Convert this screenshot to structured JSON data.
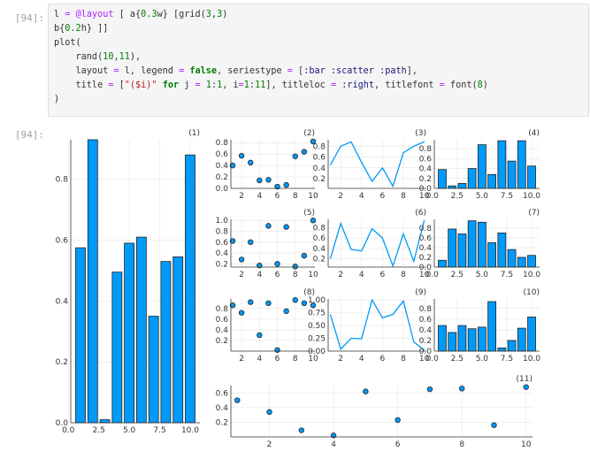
{
  "cell": {
    "input_prompt": "[94]:",
    "output_prompt": "[94]:",
    "code_lines": [
      "l = @layout [ a{0.3w} [grid(3,3)",
      "b{0.2h} ]]",
      "plot(",
      "    rand(10,11),",
      "    layout = l, legend = false, seriestype = [:bar :scatter :path],",
      "    title = [\"($i)\" for j = 1:1, i=1:11], titleloc = :right, titlefont = font(8)",
      ")"
    ]
  },
  "colors": {
    "series": "#009AF9",
    "axis": "#333333",
    "grid": "#e6e6e6",
    "marker_edge": "#222222"
  },
  "chart_data": [
    {
      "type": "bar",
      "title": "(1)",
      "x": [
        1,
        2,
        3,
        4,
        5,
        6,
        7,
        8,
        9,
        10
      ],
      "values": [
        0.575,
        0.93,
        0.01,
        0.495,
        0.59,
        0.61,
        0.35,
        0.53,
        0.545,
        0.88
      ],
      "xlim": [
        0.2,
        10.8
      ],
      "ylim": [
        0,
        0.93
      ],
      "xticks": [
        0,
        2.5,
        5,
        7.5,
        10
      ],
      "xtick_labels": [
        "0.0",
        "2.5",
        "5.0",
        "7.5",
        "10.0"
      ],
      "yticks": [
        0,
        0.2,
        0.4,
        0.6,
        0.8
      ],
      "ytick_labels": [
        "0.0",
        "0.2",
        "0.4",
        "0.6",
        "0.8"
      ]
    },
    {
      "type": "scatter",
      "title": "(2)",
      "x": [
        1,
        2,
        3,
        4,
        5,
        6,
        7,
        8,
        9,
        10
      ],
      "values": [
        0.4,
        0.57,
        0.45,
        0.14,
        0.15,
        0.03,
        0.06,
        0.56,
        0.64,
        0.82
      ],
      "xlim": [
        0.8,
        10.2
      ],
      "ylim": [
        0,
        0.85
      ],
      "xticks": [
        2,
        4,
        6,
        8,
        10
      ],
      "xtick_labels": [
        "2",
        "4",
        "6",
        "8",
        "10"
      ],
      "yticks": [
        0,
        0.2,
        0.4,
        0.6,
        0.8
      ],
      "ytick_labels": [
        "0.0",
        "0.2",
        "0.4",
        "0.6",
        "0.8"
      ]
    },
    {
      "type": "line",
      "title": "(3)",
      "x": [
        1,
        2,
        3,
        4,
        5,
        6,
        7,
        8,
        9,
        10
      ],
      "values": [
        0.45,
        0.8,
        0.88,
        0.5,
        0.15,
        0.4,
        0.06,
        0.68,
        0.8,
        0.88
      ],
      "xlim": [
        0.8,
        10.2
      ],
      "ylim": [
        0.02,
        0.92
      ],
      "xticks": [
        2,
        4,
        6,
        8,
        10
      ],
      "xtick_labels": [
        "2",
        "4",
        "6",
        "8",
        "10"
      ],
      "yticks": [
        0.2,
        0.4,
        0.6,
        0.8
      ],
      "ytick_labels": [
        "0.2",
        "0.4",
        "0.6",
        "0.8"
      ]
    },
    {
      "type": "bar",
      "title": "(4)",
      "x": [
        1,
        2,
        3,
        4,
        5,
        6,
        7,
        8,
        9,
        10
      ],
      "values": [
        0.38,
        0.05,
        0.1,
        0.4,
        0.88,
        0.28,
        0.96,
        0.55,
        0.96,
        0.45
      ],
      "xlim": [
        0.2,
        10.8
      ],
      "ylim": [
        0,
        0.98
      ],
      "xticks": [
        0,
        2.5,
        5,
        7.5,
        10
      ],
      "xtick_labels": [
        "0.0",
        "2.5",
        "5.0",
        "7.5",
        "10.0"
      ],
      "yticks": [
        0,
        0.2,
        0.4,
        0.6,
        0.8
      ],
      "ytick_labels": [
        "0.0",
        "0.2",
        "0.4",
        "0.6",
        "0.8"
      ]
    },
    {
      "type": "scatter",
      "title": "(5)",
      "x": [
        1,
        2,
        3,
        4,
        5,
        6,
        7,
        8,
        9,
        10
      ],
      "values": [
        0.62,
        0.28,
        0.6,
        0.17,
        0.9,
        0.2,
        0.88,
        0.15,
        0.35,
        1.0
      ],
      "xlim": [
        0.8,
        10.2
      ],
      "ylim": [
        0.14,
        1.02
      ],
      "xticks": [
        2,
        4,
        6,
        8,
        10
      ],
      "xtick_labels": [
        "2",
        "4",
        "6",
        "8",
        "10"
      ],
      "yticks": [
        0.2,
        0.4,
        0.6,
        0.8,
        1.0
      ],
      "ytick_labels": [
        "0.2",
        "0.4",
        "0.6",
        "0.8",
        "1.0"
      ]
    },
    {
      "type": "line",
      "title": "(6)",
      "x": [
        1,
        2,
        3,
        4,
        5,
        6,
        7,
        8,
        9,
        10
      ],
      "values": [
        0.2,
        0.88,
        0.38,
        0.35,
        0.78,
        0.6,
        0.06,
        0.68,
        0.15,
        0.94
      ],
      "xlim": [
        0.8,
        10.2
      ],
      "ylim": [
        0.04,
        0.96
      ],
      "xticks": [
        2,
        4,
        6,
        8,
        10
      ],
      "xtick_labels": [
        "2",
        "4",
        "6",
        "8",
        "10"
      ],
      "yticks": [
        0.2,
        0.4,
        0.6,
        0.8
      ],
      "ytick_labels": [
        "0.2",
        "0.4",
        "0.6",
        "0.8"
      ]
    },
    {
      "type": "bar",
      "title": "(7)",
      "x": [
        1,
        2,
        3,
        4,
        5,
        6,
        7,
        8,
        9,
        10
      ],
      "values": [
        0.14,
        0.78,
        0.68,
        0.95,
        0.92,
        0.5,
        0.7,
        0.36,
        0.2,
        0.24
      ],
      "xlim": [
        0.2,
        10.8
      ],
      "ylim": [
        0,
        0.98
      ],
      "xticks": [
        0,
        2.5,
        5,
        7.5,
        10
      ],
      "xtick_labels": [
        "0.0",
        "2.5",
        "5.0",
        "7.5",
        "10.0"
      ],
      "yticks": [
        0,
        0.2,
        0.4,
        0.6,
        0.8
      ],
      "ytick_labels": [
        "0.0",
        "0.2",
        "0.4",
        "0.6",
        "0.8"
      ]
    },
    {
      "type": "scatter",
      "title": "(8)",
      "x": [
        1,
        2,
        3,
        4,
        5,
        6,
        7,
        8,
        9,
        10
      ],
      "values": [
        0.86,
        0.72,
        0.92,
        0.3,
        0.9,
        0.02,
        0.75,
        0.96,
        0.9,
        0.86
      ],
      "xlim": [
        0.8,
        10.2
      ],
      "ylim": [
        0,
        0.98
      ],
      "xticks": [
        2,
        4,
        6,
        8,
        10
      ],
      "xtick_labels": [
        "2",
        "4",
        "6",
        "8",
        "10"
      ],
      "yticks": [
        0.2,
        0.4,
        0.6,
        0.8
      ],
      "ytick_labels": [
        "0.2",
        "0.4",
        "0.6",
        "0.8"
      ]
    },
    {
      "type": "line",
      "title": "(9)",
      "x": [
        1,
        2,
        3,
        4,
        5,
        6,
        7,
        8,
        9,
        10
      ],
      "values": [
        0.72,
        0.04,
        0.25,
        0.24,
        1.0,
        0.65,
        0.72,
        0.98,
        0.18,
        0.02
      ],
      "xlim": [
        0.8,
        10.2
      ],
      "ylim": [
        0,
        1.02
      ],
      "xticks": [
        2,
        4,
        6,
        8,
        10
      ],
      "xtick_labels": [
        "2",
        "4",
        "6",
        "8",
        "10"
      ],
      "yticks": [
        0,
        0.25,
        0.5,
        0.75,
        1.0
      ],
      "ytick_labels": [
        "0.00",
        "0.25",
        "0.50",
        "0.75",
        "1.00"
      ]
    },
    {
      "type": "bar",
      "title": "(10)",
      "x": [
        1,
        2,
        3,
        4,
        5,
        6,
        7,
        8,
        9,
        10
      ],
      "values": [
        0.48,
        0.35,
        0.48,
        0.42,
        0.45,
        0.93,
        0.06,
        0.2,
        0.43,
        0.64
      ],
      "xlim": [
        0.2,
        10.8
      ],
      "ylim": [
        0,
        0.98
      ],
      "xticks": [
        0,
        2.5,
        5,
        7.5,
        10
      ],
      "xtick_labels": [
        "0.0",
        "2.5",
        "5.0",
        "7.5",
        "10.0"
      ],
      "yticks": [
        0,
        0.2,
        0.4,
        0.6,
        0.8
      ],
      "ytick_labels": [
        "0.0",
        "0.2",
        "0.4",
        "0.6",
        "0.8"
      ]
    },
    {
      "type": "scatter",
      "title": "(11)",
      "x": [
        1,
        2,
        3,
        4,
        5,
        6,
        7,
        8,
        9,
        10
      ],
      "values": [
        0.5,
        0.34,
        0.09,
        0.02,
        0.62,
        0.23,
        0.65,
        0.66,
        0.16,
        0.68
      ],
      "xlim": [
        0.8,
        10.2
      ],
      "ylim": [
        0,
        0.7
      ],
      "xticks": [
        2,
        4,
        6,
        8,
        10
      ],
      "xtick_labels": [
        "2",
        "4",
        "6",
        "8",
        "10"
      ],
      "yticks": [
        0.2,
        0.4,
        0.6
      ],
      "ytick_labels": [
        "0.2",
        "0.4",
        "0.6"
      ]
    }
  ]
}
